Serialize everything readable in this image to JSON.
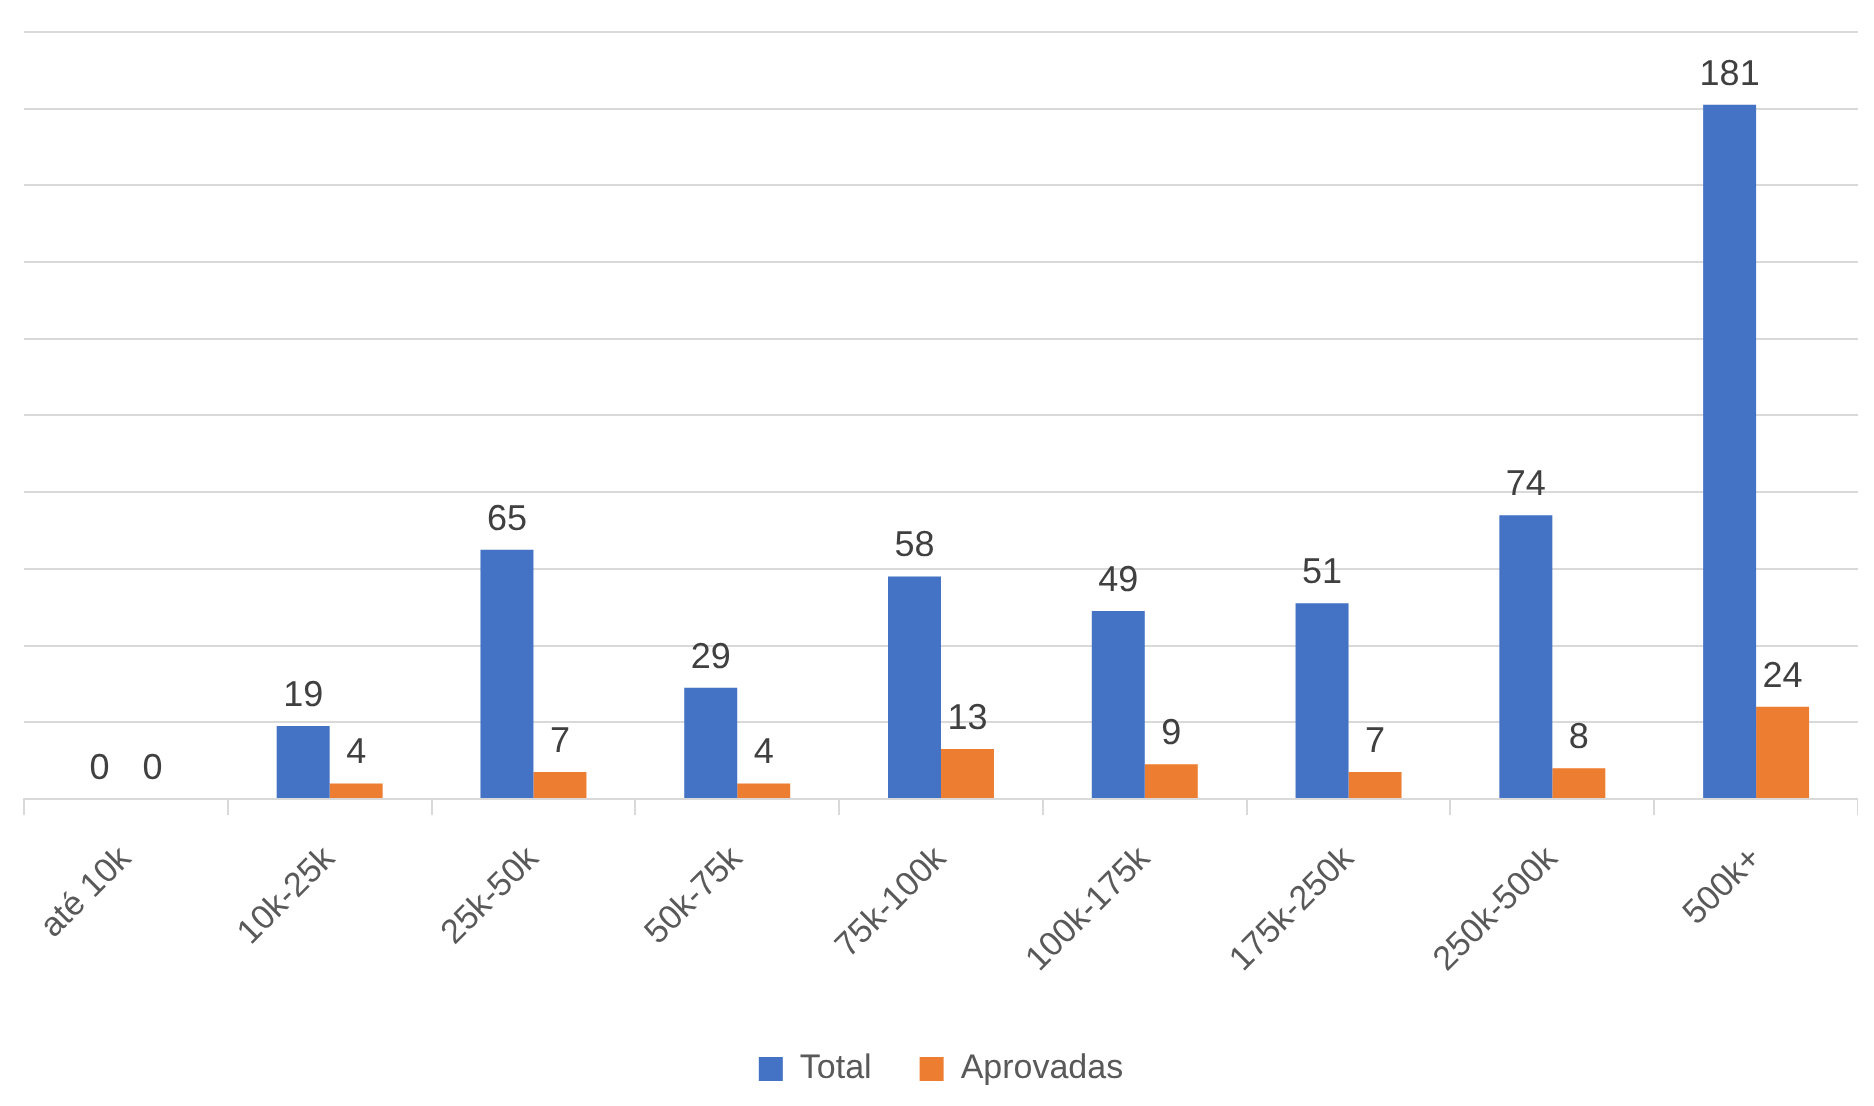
{
  "chart_data": {
    "type": "bar",
    "categories": [
      "até 10k",
      "10k-25k",
      "25k-50k",
      "50k-75k",
      "75k-100k",
      "100k-175k",
      "175k-250k",
      "250k-500k",
      "500k+"
    ],
    "series": [
      {
        "name": "Total",
        "color": "#4472c4",
        "values": [
          0,
          19,
          65,
          29,
          58,
          49,
          51,
          74,
          181
        ]
      },
      {
        "name": "Aprovadas",
        "color": "#ed7d31",
        "values": [
          0,
          4,
          7,
          4,
          13,
          9,
          7,
          8,
          24
        ]
      }
    ],
    "ylim": [
      0,
      200
    ],
    "yticks": [
      {
        "value": 0,
        "label": null
      },
      {
        "value": 20,
        "label": null
      },
      {
        "value": 40,
        "label": null
      },
      {
        "value": 60,
        "label": null
      },
      {
        "value": 80,
        "label": null
      },
      {
        "value": 100,
        "label": null
      },
      {
        "value": 120,
        "label": null
      },
      {
        "value": 140,
        "label": null
      },
      {
        "value": 160,
        "label": null
      },
      {
        "value": 180,
        "label": null
      },
      {
        "value": 200,
        "label": null
      }
    ],
    "grid": "y",
    "tick_labels": "x",
    "legend": "bottom",
    "data_labels": true
  }
}
